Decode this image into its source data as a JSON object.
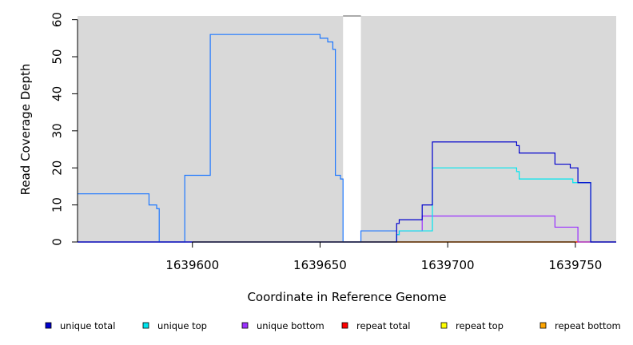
{
  "chart_data": {
    "type": "line",
    "title": "",
    "xlabel": "Coordinate in Reference Genome",
    "ylabel": "Read Coverage Depth",
    "xlim": [
      1639555,
      1639766
    ],
    "ylim": [
      0,
      61
    ],
    "x_ticks": [
      1639600,
      1639650,
      1639700,
      1639750
    ],
    "x_tick_labels": [
      "1639600",
      "1639650",
      "1639700",
      "1639750"
    ],
    "y_ticks": [
      0,
      10,
      20,
      30,
      40,
      50,
      60
    ],
    "y_tick_labels": [
      "0",
      "10",
      "20",
      "30",
      "40",
      "50",
      "60"
    ],
    "background": "#d9d9d9",
    "gap_region": [
      1639659,
      1639666
    ],
    "grid": false,
    "legend_position": "bottom",
    "series": [
      {
        "name": "unique total",
        "color": "#0000cd",
        "step_points": [
          [
            1639555,
            0
          ],
          [
            1639680,
            0
          ],
          [
            1639680,
            5
          ],
          [
            1639681,
            5
          ],
          [
            1639681,
            6
          ],
          [
            1639690,
            6
          ],
          [
            1639690,
            10
          ],
          [
            1639694,
            10
          ],
          [
            1639694,
            27
          ],
          [
            1639727,
            27
          ],
          [
            1639727,
            26
          ],
          [
            1639728,
            26
          ],
          [
            1639728,
            24
          ],
          [
            1639742,
            24
          ],
          [
            1639742,
            21
          ],
          [
            1639748,
            21
          ],
          [
            1639748,
            20
          ],
          [
            1639751,
            20
          ],
          [
            1639751,
            16
          ],
          [
            1639756,
            16
          ],
          [
            1639756,
            0
          ],
          [
            1639766,
            0
          ]
        ]
      },
      {
        "name": "unique top",
        "color": "#00e5ee",
        "step_points": [
          [
            1639555,
            0
          ],
          [
            1639680,
            0
          ],
          [
            1639680,
            2
          ],
          [
            1639681,
            2
          ],
          [
            1639681,
            3
          ],
          [
            1639694,
            3
          ],
          [
            1639694,
            20
          ],
          [
            1639727,
            20
          ],
          [
            1639727,
            19
          ],
          [
            1639728,
            19
          ],
          [
            1639728,
            17
          ],
          [
            1639749,
            17
          ],
          [
            1639749,
            16
          ],
          [
            1639756,
            16
          ],
          [
            1639756,
            0
          ],
          [
            1639766,
            0
          ]
        ]
      },
      {
        "name": "unique bottom",
        "color": "#9b30ff",
        "step_points": [
          [
            1639555,
            0
          ],
          [
            1639680,
            0
          ],
          [
            1639680,
            2
          ],
          [
            1639681,
            2
          ],
          [
            1639681,
            3
          ],
          [
            1639690,
            3
          ],
          [
            1639690,
            7
          ],
          [
            1639742,
            7
          ],
          [
            1639742,
            4
          ],
          [
            1639751,
            4
          ],
          [
            1639751,
            0
          ],
          [
            1639766,
            0
          ]
        ]
      },
      {
        "name": "repeat total",
        "color": "#ff0000",
        "step_points": [
          [
            1639555,
            0
          ],
          [
            1639766,
            0
          ]
        ]
      },
      {
        "name": "repeat top",
        "color": "#ffff00",
        "step_points": [
          [
            1639555,
            0
          ],
          [
            1639766,
            0
          ]
        ]
      },
      {
        "name": "repeat bottom",
        "color": "#ffa500",
        "step_points": [
          [
            1639666,
            0
          ],
          [
            1639766,
            0
          ]
        ]
      },
      {
        "name": "",
        "color": "#1e78ff",
        "step_points": [
          [
            1639555,
            13
          ],
          [
            1639583,
            13
          ],
          [
            1639583,
            10
          ],
          [
            1639586,
            10
          ],
          [
            1639586,
            9
          ],
          [
            1639587,
            9
          ],
          [
            1639587,
            0
          ],
          [
            1639597,
            0
          ],
          [
            1639597,
            18
          ],
          [
            1639607,
            18
          ],
          [
            1639607,
            56
          ],
          [
            1639650,
            56
          ],
          [
            1639650,
            55
          ],
          [
            1639653,
            55
          ],
          [
            1639653,
            54
          ],
          [
            1639655,
            54
          ],
          [
            1639655,
            52
          ],
          [
            1639656,
            52
          ],
          [
            1639656,
            18
          ],
          [
            1639658,
            18
          ],
          [
            1639658,
            17
          ],
          [
            1639659,
            17
          ],
          [
            1639659,
            0
          ],
          [
            1639666,
            0
          ],
          [
            1639666,
            3
          ],
          [
            1639680,
            3
          ]
        ]
      }
    ]
  },
  "legend": {
    "items": [
      {
        "label": "unique total",
        "color": "#0000cd"
      },
      {
        "label": "unique top",
        "color": "#00e5ee"
      },
      {
        "label": "unique bottom",
        "color": "#9b30ff"
      },
      {
        "label": "repeat total",
        "color": "#ff0000"
      },
      {
        "label": "repeat top",
        "color": "#ffff00"
      },
      {
        "label": "repeat bottom",
        "color": "#ffa500"
      }
    ]
  }
}
